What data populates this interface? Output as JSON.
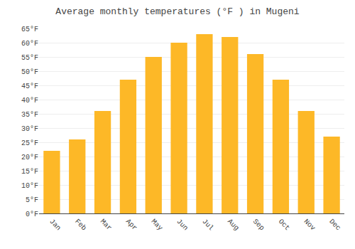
{
  "chart_data": {
    "type": "bar",
    "title": "Average monthly temperatures (°F ) in Mugeni",
    "categories": [
      "Jan",
      "Feb",
      "Mar",
      "Apr",
      "May",
      "Jun",
      "Jul",
      "Aug",
      "Sep",
      "Oct",
      "Nov",
      "Dec"
    ],
    "values": [
      22,
      26,
      36,
      47,
      55,
      60,
      63,
      62,
      56,
      47,
      36,
      27
    ],
    "color": "#FDB827",
    "ylim": [
      0,
      65
    ],
    "yticks": [
      {
        "value": 0,
        "label": "0°F"
      },
      {
        "value": 5,
        "label": "5°F"
      },
      {
        "value": 10,
        "label": "10°F"
      },
      {
        "value": 15,
        "label": "15°F"
      },
      {
        "value": 20,
        "label": "20°F"
      },
      {
        "value": 25,
        "label": "25°F"
      },
      {
        "value": 30,
        "label": "30°F"
      },
      {
        "value": 35,
        "label": "35°F"
      },
      {
        "value": 40,
        "label": "40°F"
      },
      {
        "value": 45,
        "label": "45°F"
      },
      {
        "value": 50,
        "label": "50°F"
      },
      {
        "value": 55,
        "label": "55°F"
      },
      {
        "value": 60,
        "label": "60°F"
      },
      {
        "value": 65,
        "label": "65°F"
      }
    ],
    "grid": true
  }
}
